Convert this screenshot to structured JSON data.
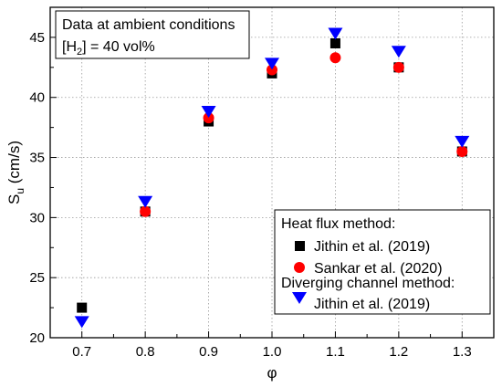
{
  "chart_data": {
    "type": "scatter",
    "xlabel": "φ",
    "ylabel": "S",
    "ylabel_sub": "u",
    "ylabel_unit": " (cm/s)",
    "xlim": [
      0.65,
      1.35
    ],
    "ylim": [
      20,
      47.5
    ],
    "x_ticks": [
      "0.7",
      "0.8",
      "0.9",
      "1.0",
      "1.1",
      "1.2",
      "1.3"
    ],
    "y_ticks": [
      "20",
      "25",
      "30",
      "35",
      "40",
      "45"
    ],
    "grid": true,
    "annotation": {
      "line1": "Data at ambient conditions",
      "line2_prefix": "[H",
      "line2_sub": "2",
      "line2_suffix": "] = 40 vol%"
    },
    "legend": {
      "placement": "bottom-right",
      "group1": "Heat flux method:",
      "group2": "Diverging channel method:"
    },
    "series": [
      {
        "name": "Jithin et al. (2019)",
        "marker": "square",
        "color": "#000000",
        "x": [
          0.7,
          0.8,
          0.9,
          1.0,
          1.1,
          1.2,
          1.3
        ],
        "y": [
          22.5,
          30.5,
          38.0,
          42.0,
          44.5,
          42.5,
          35.5
        ]
      },
      {
        "name": "Sankar et al. (2020)",
        "marker": "circle",
        "color": "#ff0000",
        "x": [
          0.8,
          0.9,
          1.0,
          1.1,
          1.2,
          1.3
        ],
        "y": [
          30.5,
          38.3,
          42.3,
          43.3,
          42.5,
          35.5
        ]
      },
      {
        "name": "Jithin et al. (2019)",
        "marker": "triangle-down",
        "color": "#0000ff",
        "x": [
          0.7,
          0.8,
          0.9,
          1.0,
          1.1,
          1.2,
          1.3
        ],
        "y": [
          21.3,
          31.3,
          38.8,
          42.8,
          45.3,
          43.8,
          36.3
        ]
      }
    ]
  }
}
